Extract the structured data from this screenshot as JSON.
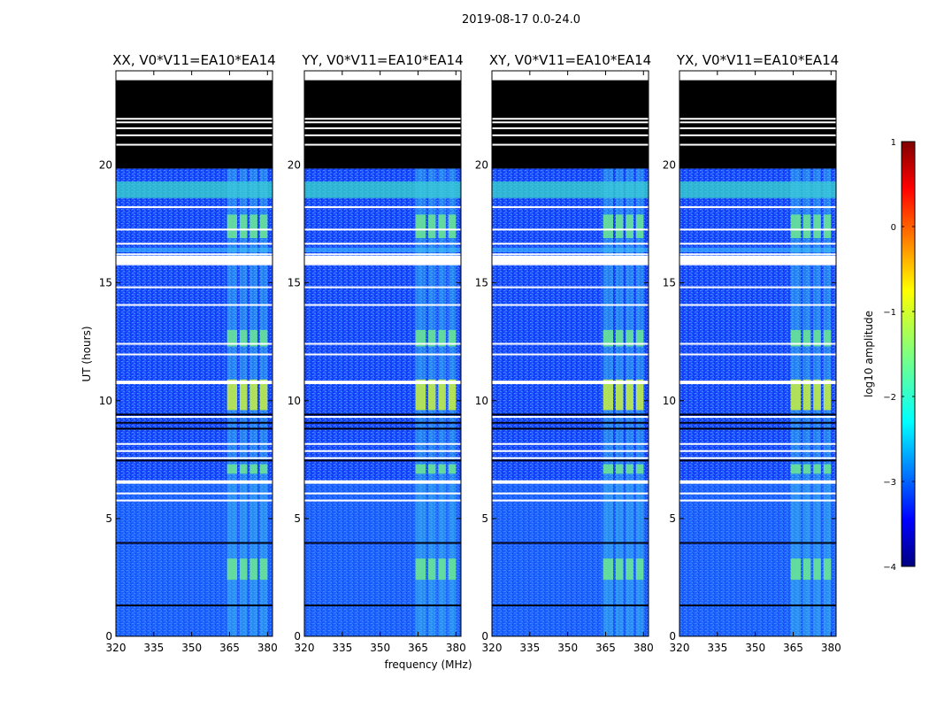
{
  "figure_title": "2019-08-17 0.0-24.0",
  "chart_data": {
    "type": "heatmap",
    "x_range": [
      320,
      382
    ],
    "y_range": [
      0,
      24
    ],
    "x_ticks": [
      320,
      335,
      350,
      365,
      380
    ],
    "y_ticks": [
      0,
      5,
      10,
      15,
      20
    ],
    "xlabel": "frequency (MHz)",
    "ylabel": "UT (hours)",
    "data_end_ut": 23.6,
    "black_band_ut": [
      19.85,
      23.6
    ],
    "flagged_ut": [
      20.9,
      21.3,
      21.6,
      21.85,
      22.0,
      18.25,
      17.3,
      16.7,
      16.25,
      15.95,
      15.85,
      14.85,
      14.1,
      12.45,
      12.0,
      10.85,
      10.78,
      9.35,
      8.2,
      7.9,
      7.6,
      6.62,
      6.55,
      6.1,
      5.8
    ],
    "rfi_blocks_mhz": [
      [
        364,
        368
      ],
      [
        369,
        372
      ],
      [
        373,
        376
      ],
      [
        377,
        380
      ]
    ],
    "colorbar": {
      "label": "log10 amplitude",
      "min": -4,
      "max": 1,
      "ticks": [
        -4,
        -3,
        -2,
        -1,
        0,
        1
      ]
    },
    "panels": [
      {
        "title": "XX, V0*V11=EA10*EA14"
      },
      {
        "title": "YY, V0*V11=EA10*EA14"
      },
      {
        "title": "XY, V0*V11=EA10*EA14"
      },
      {
        "title": "YX, V0*V11=EA10*EA14"
      }
    ]
  }
}
